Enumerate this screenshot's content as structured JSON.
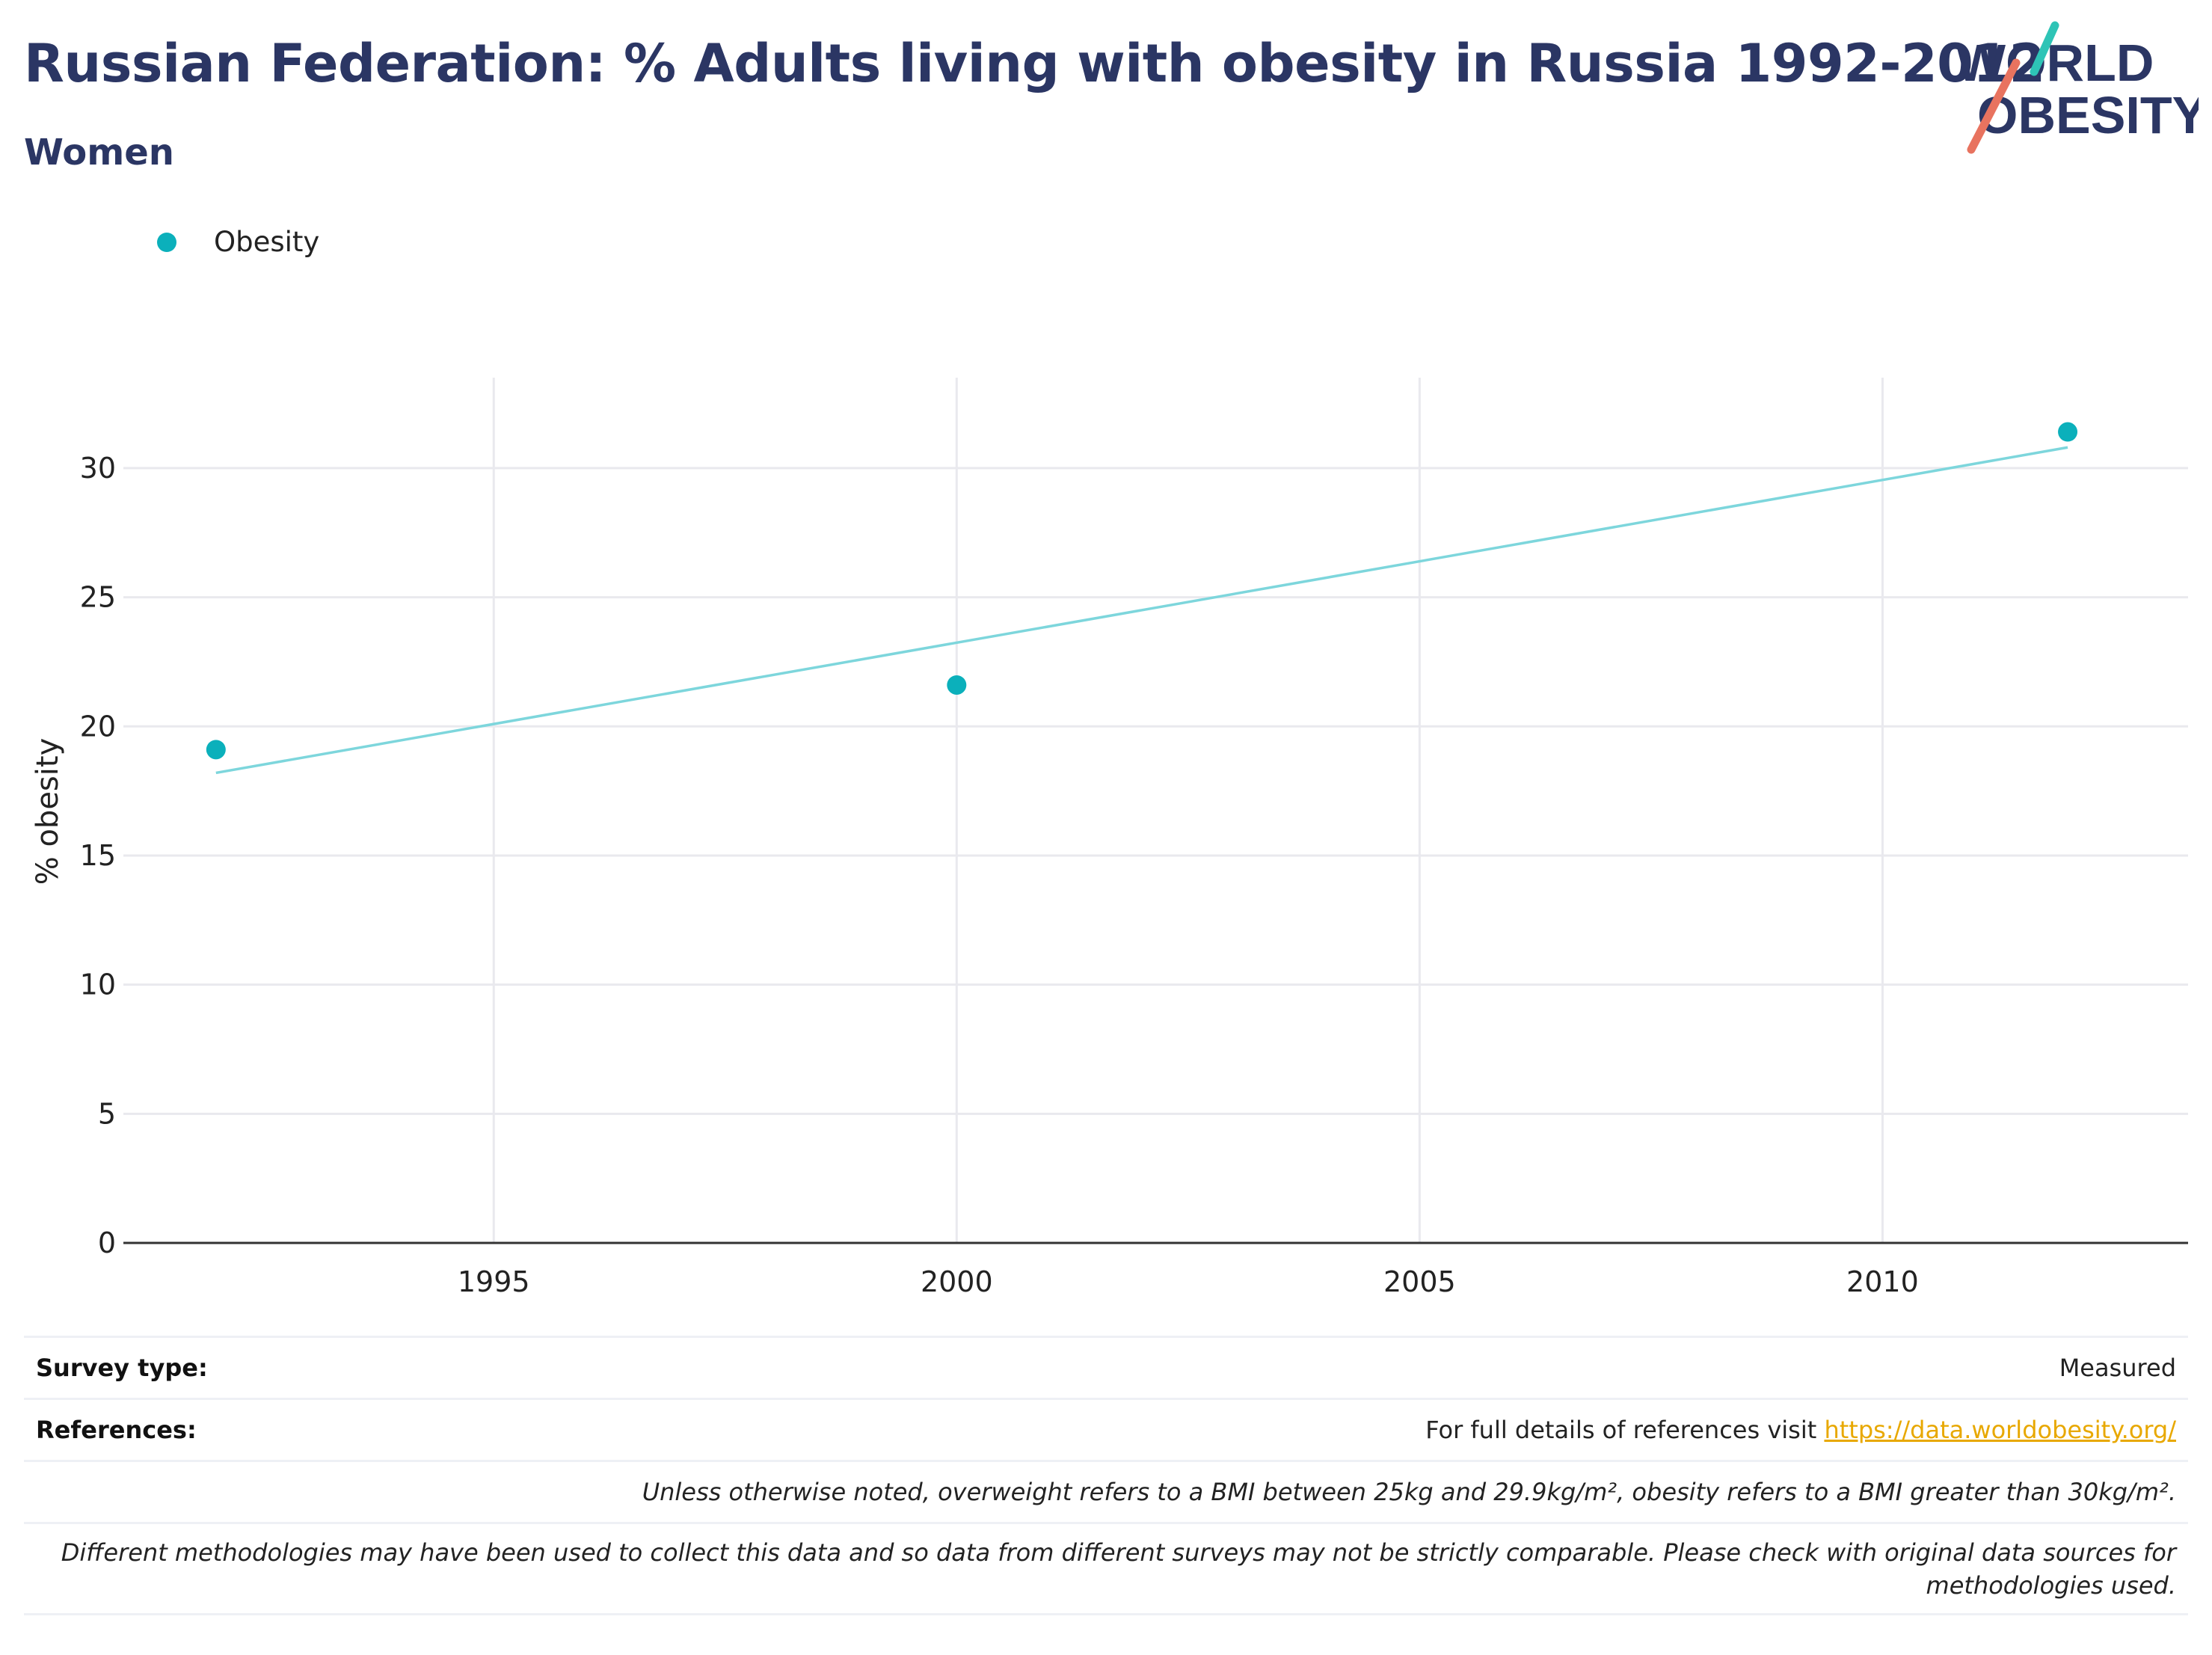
{
  "header": {
    "title": "Russian Federation: % Adults living with obesity in Russia 1992-2012",
    "subtitle": "Women"
  },
  "logo": {
    "line1": "WORLD",
    "line2": "OBESITY",
    "colors": {
      "text": "#2b3664",
      "teal": "#2ec4b6",
      "coral": "#e8735f"
    }
  },
  "legend": {
    "items": [
      {
        "label": "Obesity",
        "color": "#0bb0bb"
      }
    ]
  },
  "chart_data": {
    "type": "scatter",
    "title": "",
    "xlabel": "",
    "ylabel": "% obesity",
    "xlim": [
      1991,
      2013.3
    ],
    "ylim": [
      0,
      33.5
    ],
    "x_ticks": [
      1995,
      2000,
      2005,
      2010
    ],
    "y_ticks": [
      0,
      5,
      10,
      15,
      20,
      25,
      30
    ],
    "series": [
      {
        "name": "Obesity",
        "color": "#0bb0bb",
        "x": [
          1992,
          2000,
          2012
        ],
        "y": [
          19.1,
          21.6,
          31.4
        ]
      }
    ],
    "trendline": {
      "color": "#7dd6dc",
      "x": [
        1992,
        2012
      ],
      "y": [
        18.2,
        30.8
      ]
    },
    "grid": true,
    "legend_position": "top-left"
  },
  "info": {
    "survey_type_label": "Survey type:",
    "survey_type_value": "Measured",
    "references_label": "References:",
    "references_text": "For full details of references visit ",
    "references_link": "https://data.worldobesity.org/",
    "note1": "Unless otherwise noted, overweight refers to a BMI between 25kg and 29.9kg/m², obesity refers to a BMI greater than 30kg/m².",
    "note2": "Different methodologies may have been used to collect this data and so data from different surveys may not be strictly comparable. Please check with original data sources for methodologies used."
  }
}
